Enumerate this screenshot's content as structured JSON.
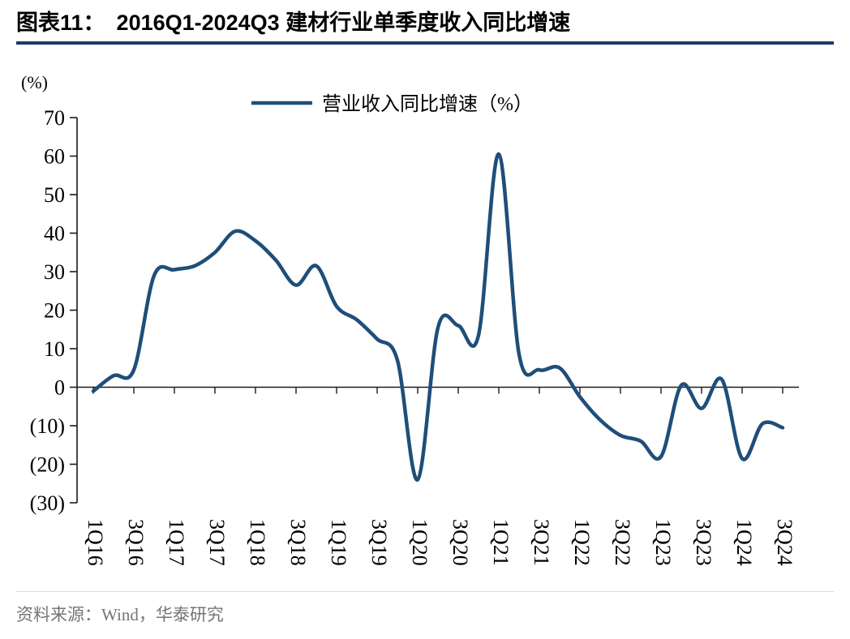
{
  "header": {
    "figure_label": "图表11：",
    "title": "2016Q1-2024Q3 建材行业单季度收入同比增速"
  },
  "footer": {
    "source": "资料来源：Wind，华泰研究"
  },
  "chart_data": {
    "type": "line",
    "title": "2016Q1-2024Q3 建材行业单季度收入同比增速",
    "legend": [
      "营业收入同比增速（%）"
    ],
    "legend_position": "top-center",
    "unit_label": "(%)",
    "xlabel": "",
    "ylabel": "(%)",
    "grid": false,
    "line_color": "#1F4E79",
    "axis_color": "#1a1a1a",
    "ylim": [
      -30,
      70
    ],
    "yticks": [
      70,
      60,
      50,
      40,
      30,
      20,
      10,
      0,
      -10,
      -20,
      -30
    ],
    "ytick_labels": [
      "70",
      "60",
      "50",
      "40",
      "30",
      "20",
      "10",
      "0",
      "(10)",
      "(20)",
      "(30)"
    ],
    "x": [
      "1Q16",
      "2Q16",
      "3Q16",
      "4Q16",
      "1Q17",
      "2Q17",
      "3Q17",
      "4Q17",
      "1Q18",
      "2Q18",
      "3Q18",
      "4Q18",
      "1Q19",
      "2Q19",
      "3Q19",
      "4Q19",
      "1Q20",
      "2Q20",
      "3Q20",
      "4Q20",
      "1Q21",
      "2Q21",
      "3Q21",
      "4Q21",
      "1Q22",
      "2Q22",
      "3Q22",
      "4Q22",
      "1Q23",
      "2Q23",
      "3Q23",
      "4Q23",
      "1Q24",
      "2Q24",
      "3Q24"
    ],
    "xtick_labels": [
      "1Q16",
      "3Q16",
      "1Q17",
      "3Q17",
      "1Q18",
      "3Q18",
      "1Q19",
      "3Q19",
      "1Q20",
      "3Q20",
      "1Q21",
      "3Q21",
      "1Q22",
      "3Q22",
      "1Q23",
      "3Q23",
      "1Q24",
      "3Q24"
    ],
    "series": [
      {
        "name": "营业收入同比增速（%）",
        "values": [
          -1,
          3,
          4.5,
          29,
          30.5,
          31.5,
          35,
          40.5,
          38,
          33,
          26.5,
          31.5,
          21,
          17.5,
          12.5,
          7,
          -24,
          15.5,
          16,
          13.5,
          60.5,
          8.5,
          4.5,
          5,
          -2.5,
          -8.5,
          -12.5,
          -14,
          -18,
          0.5,
          -5.5,
          2,
          -18.5,
          -9.5,
          -10.5
        ]
      }
    ]
  }
}
